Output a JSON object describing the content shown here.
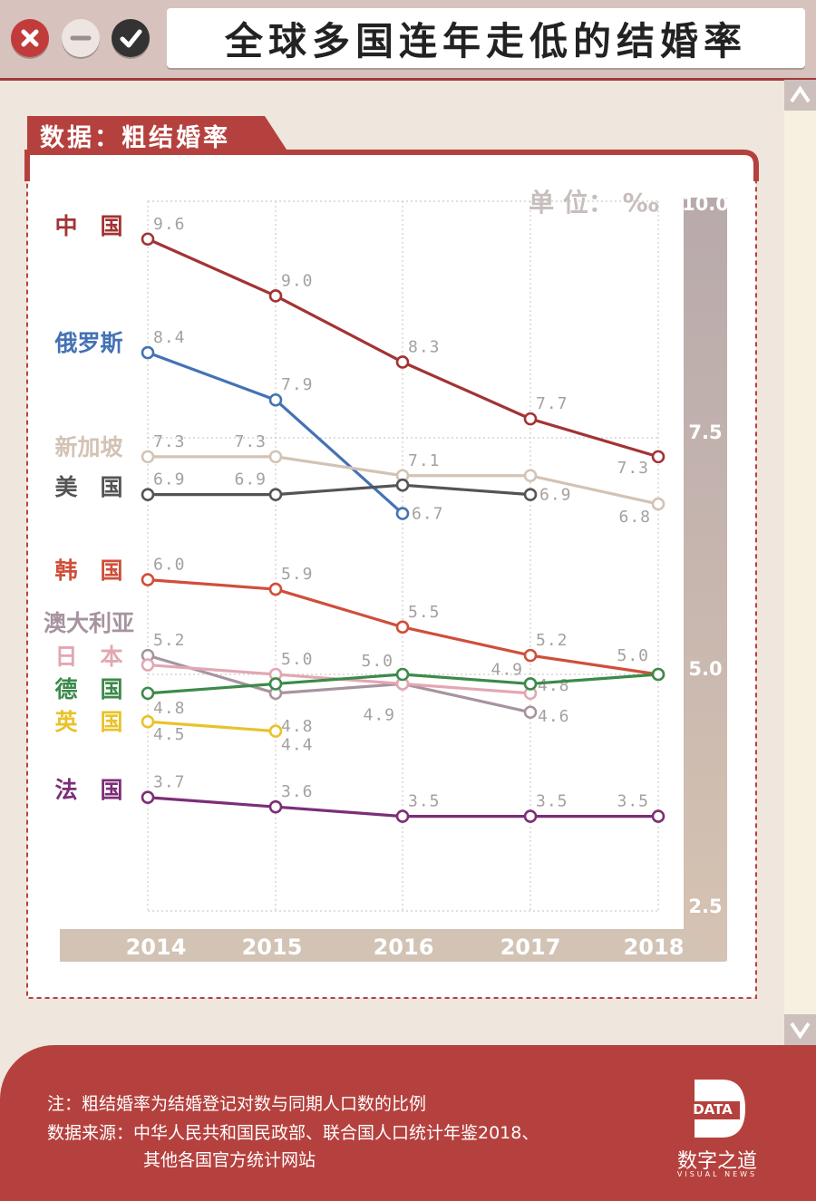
{
  "window": {
    "title": "全球多国连年走低的结婚率",
    "buttons": [
      "close",
      "minimize",
      "confirm"
    ]
  },
  "badge": {
    "label": "数据：粗结婚率"
  },
  "colors": {
    "titlebar": "#d8c2bd",
    "accent": "#b5413e",
    "close": "#c23b3b",
    "minimize": "#e8e0de",
    "confirm": "#333333",
    "axis_band": "#d2c3b5",
    "right_axis_top": "#b8a9ab",
    "right_axis_bottom": "#d8c5b5"
  },
  "chart_data": {
    "type": "line",
    "unit": "单 位： ‰",
    "x": [
      "2014",
      "2015",
      "2016",
      "2017",
      "2018"
    ],
    "yaxis": {
      "ticks": [
        "10.0",
        "7.5",
        "5.0",
        "2.5"
      ],
      "ylim": [
        2.5,
        10.0
      ],
      "position": "right"
    },
    "grid": true,
    "legend": "inline-left",
    "series": [
      {
        "name": "中　国",
        "color": "#a33334",
        "values": [
          9.6,
          9.0,
          8.3,
          7.7,
          7.3
        ],
        "labels": [
          "9.6",
          "9.0",
          "8.3",
          "7.7",
          "7.3"
        ]
      },
      {
        "name": "俄罗斯",
        "color": "#4472b4",
        "values": [
          8.4,
          7.9,
          6.7,
          null,
          null
        ],
        "labels": [
          "8.4",
          "7.9",
          "6.7",
          null,
          null
        ]
      },
      {
        "name": "新加坡",
        "color": "#d3c3b5",
        "values": [
          7.3,
          7.3,
          7.1,
          7.1,
          6.8
        ],
        "labels": [
          "7.3",
          "7.3",
          "7.1",
          null,
          "6.8"
        ]
      },
      {
        "name": "美　国",
        "color": "#545454",
        "values": [
          6.9,
          6.9,
          7.0,
          6.9,
          null
        ],
        "labels": [
          "6.9",
          "6.9",
          null,
          "6.9",
          null
        ]
      },
      {
        "name": "韩　国",
        "color": "#cf4f3a",
        "values": [
          6.0,
          5.9,
          5.5,
          5.2,
          5.0
        ],
        "labels": [
          "6.0",
          "5.9",
          "5.5",
          "5.2",
          "5.0"
        ]
      },
      {
        "name": "澳大利亚",
        "color": "#a7939f",
        "values": [
          5.2,
          4.8,
          4.9,
          4.6,
          null
        ],
        "labels": [
          "5.2",
          "4.8",
          "4.9",
          "4.6",
          null
        ]
      },
      {
        "name": "日　本",
        "color": "#e2a7b3",
        "values": [
          5.1,
          5.0,
          4.9,
          4.8,
          null
        ],
        "labels": [
          null,
          "5.0",
          null,
          "4.8",
          null
        ]
      },
      {
        "name": "德　国",
        "color": "#3c8a4a",
        "values": [
          4.8,
          4.9,
          5.0,
          4.9,
          5.0
        ],
        "labels": [
          "4.8",
          null,
          "5.0",
          "4.9",
          null
        ]
      },
      {
        "name": "英　国",
        "color": "#e9c22b",
        "values": [
          4.5,
          4.4,
          null,
          null,
          null
        ],
        "labels": [
          "4.5",
          "4.4",
          null,
          null,
          null
        ]
      },
      {
        "name": "法　国",
        "color": "#7c2e77",
        "values": [
          3.7,
          3.6,
          3.5,
          3.5,
          3.5
        ],
        "labels": [
          "3.7",
          "3.6",
          "3.5",
          "3.5",
          "3.5"
        ]
      }
    ]
  },
  "footer": {
    "note": "注：粗结婚率为结婚登记对数与同期人口数的比例",
    "source_line1": "数据来源：中华人民共和国民政部、联合国人口统计年鉴2018、",
    "source_line2": "其他各国官方统计网站",
    "logo_letters": "DATA",
    "logo_name": "数字之道",
    "logo_sub": "VISUAL NEWS"
  }
}
